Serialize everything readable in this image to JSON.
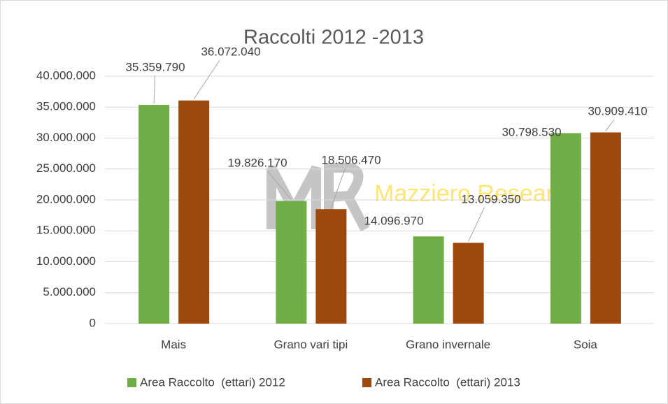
{
  "chart_data": {
    "type": "bar",
    "title": "Raccolti 2012 -2013",
    "watermark": "Mazziero Research",
    "categories": [
      "Mais",
      "Grano vari tipi",
      "Grano invernale",
      "Soia"
    ],
    "series": [
      {
        "name": "Area Raccolto  (ettari) 2012",
        "color": "#70ad47",
        "values": [
          35359790,
          19826170,
          14096970,
          30798530
        ],
        "value_labels": [
          "35.359.790",
          "19.826.170",
          "14.096.970",
          "30.798.530"
        ]
      },
      {
        "name": "Area Raccolto  (ettari) 2013",
        "color": "#9e480e",
        "values": [
          36072040,
          18506470,
          13059350,
          30909410
        ],
        "value_labels": [
          "36.072.040",
          "18.506.470",
          "13.059.350",
          "30.909.410"
        ]
      }
    ],
    "ylim": [
      0,
      40000000
    ],
    "yticks": [
      0,
      {
        "value": 5000000,
        "label": "5.000.000"
      },
      {
        "value": 10000000,
        "label": "10.000.000"
      },
      {
        "value": 15000000,
        "label": "15.000.000"
      },
      {
        "value": 20000000,
        "label": "20.000.000"
      },
      {
        "value": 25000000,
        "label": "25.000.000"
      },
      {
        "value": 30000000,
        "label": "30.000.000"
      },
      {
        "value": 35000000,
        "label": "35.000.000"
      },
      {
        "value": 40000000,
        "label": "40.000.000"
      }
    ],
    "grid": true,
    "legend": "bottom"
  }
}
